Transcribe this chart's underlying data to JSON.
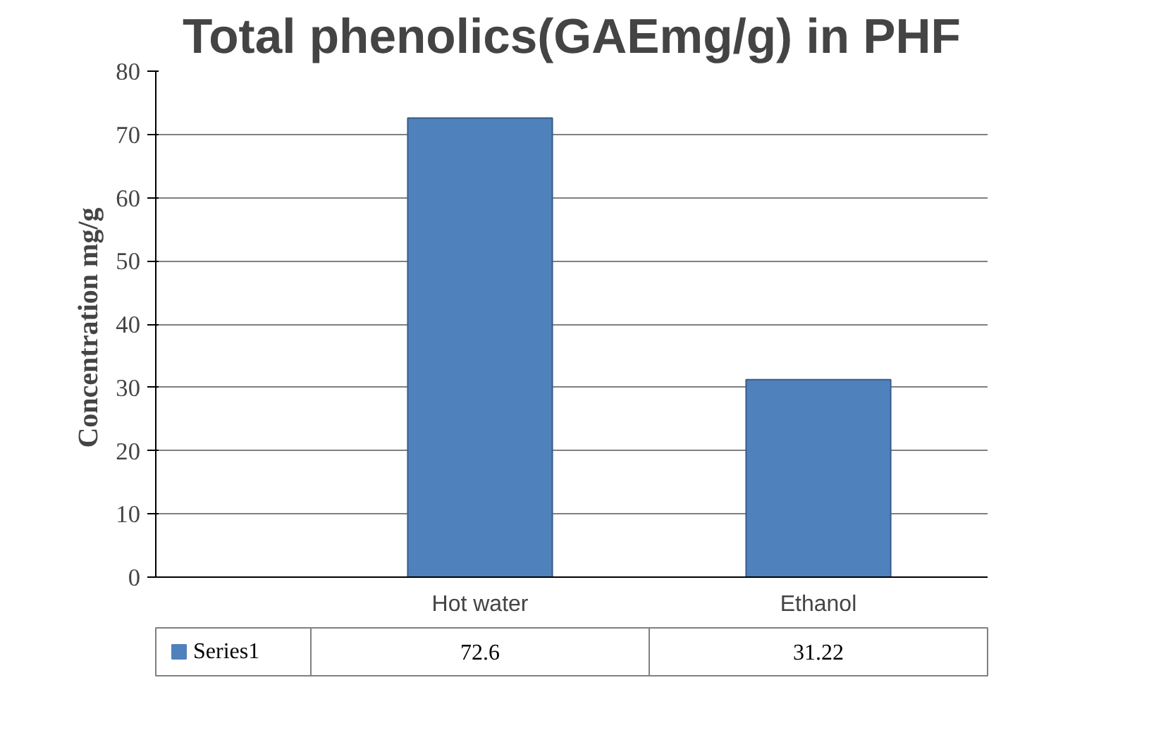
{
  "chart_data": {
    "type": "bar",
    "title": "Total phenolics(GAEmg/g) in PHF",
    "ylabel": "Concentration  mg/g",
    "categories": [
      "Hot water",
      "Ethanol"
    ],
    "series": [
      {
        "name": "Series1",
        "color": "#4f81bd",
        "values": [
          72.6,
          31.22
        ]
      }
    ],
    "ylim": [
      0,
      80
    ],
    "yticks": [
      0,
      10,
      20,
      30,
      40,
      50,
      60,
      70,
      80
    ],
    "grid": "y",
    "data_labels": true,
    "legend": "bottom"
  }
}
